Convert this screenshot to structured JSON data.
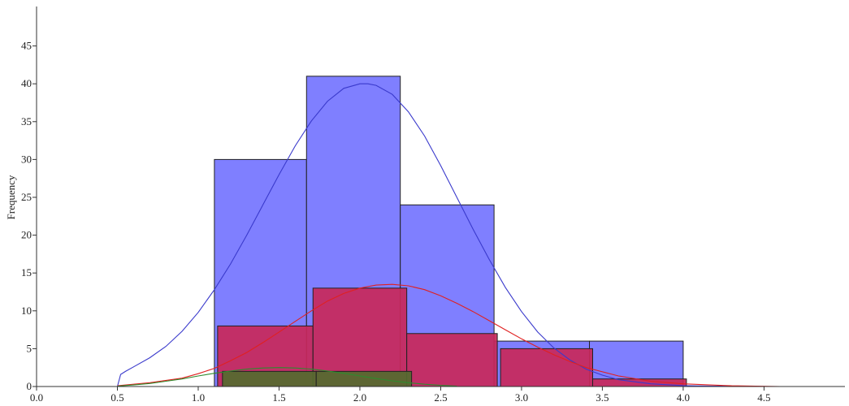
{
  "chart_data": {
    "type": "bar",
    "title": "",
    "xlabel": "",
    "ylabel": "Frequency",
    "xlim": [
      0.0,
      4.9
    ],
    "ylim": [
      0,
      50
    ],
    "x_ticks": [
      0.0,
      0.5,
      1.0,
      1.5,
      2.0,
      2.5,
      3.0,
      3.5,
      4.0,
      4.5
    ],
    "x_tick_labels": [
      "0.0",
      "0.5",
      "1.0",
      "1.5",
      "2.0",
      "2.5",
      "3.0",
      "3.5",
      "4.0",
      "4.5"
    ],
    "y_ticks": [
      0,
      5,
      10,
      15,
      20,
      25,
      30,
      35,
      40,
      45
    ],
    "y_tick_labels": [
      "0",
      "5",
      "10",
      "15",
      "20",
      "25",
      "30",
      "35",
      "40",
      "45"
    ],
    "grid": false,
    "legend": "none",
    "series": [
      {
        "color": "#7b7bff",
        "curve_color": "#3a3acc",
        "bins": [
          {
            "x0": 1.1,
            "x1": 1.67,
            "count": 30
          },
          {
            "x0": 1.67,
            "x1": 2.25,
            "count": 41
          },
          {
            "x0": 2.25,
            "x1": 2.83,
            "count": 24
          },
          {
            "x0": 2.83,
            "x1": 3.42,
            "count": 6
          },
          {
            "x0": 3.42,
            "x1": 4.0,
            "count": 6
          }
        ],
        "curve": {
          "x": [
            0.5,
            0.52,
            0.55,
            0.6,
            0.7,
            0.8,
            0.9,
            1.0,
            1.1,
            1.2,
            1.3,
            1.4,
            1.5,
            1.6,
            1.7,
            1.8,
            1.9,
            2.0,
            2.05,
            2.1,
            2.2,
            2.3,
            2.4,
            2.5,
            2.6,
            2.7,
            2.8,
            2.9,
            3.0,
            3.1,
            3.2,
            3.3,
            3.4,
            3.5,
            3.6,
            3.8,
            4.0,
            4.2,
            4.5,
            4.6
          ],
          "y": [
            0,
            1.6,
            2.0,
            2.6,
            3.8,
            5.3,
            7.3,
            9.8,
            12.8,
            16.2,
            20.0,
            24.0,
            28.0,
            31.8,
            35.1,
            37.7,
            39.4,
            40.0,
            40.0,
            39.8,
            38.6,
            36.3,
            33.1,
            29.2,
            25.0,
            20.8,
            16.8,
            13.1,
            9.9,
            7.2,
            5.1,
            3.5,
            2.3,
            1.5,
            0.9,
            0.35,
            0.12,
            0.05,
            0.0,
            0.0
          ]
        }
      },
      {
        "color": "#c8285a",
        "curve_color": "#e02020",
        "bins": [
          {
            "x0": 1.12,
            "x1": 1.71,
            "count": 8
          },
          {
            "x0": 1.71,
            "x1": 2.29,
            "count": 13
          },
          {
            "x0": 2.29,
            "x1": 2.85,
            "count": 7
          },
          {
            "x0": 2.87,
            "x1": 3.44,
            "count": 5
          },
          {
            "x0": 3.44,
            "x1": 4.02,
            "count": 1
          }
        ],
        "curve": {
          "x": [
            0.5,
            0.7,
            0.9,
            1.0,
            1.1,
            1.2,
            1.3,
            1.4,
            1.5,
            1.6,
            1.7,
            1.8,
            1.9,
            2.0,
            2.1,
            2.2,
            2.3,
            2.4,
            2.5,
            2.6,
            2.7,
            2.8,
            2.9,
            3.0,
            3.1,
            3.2,
            3.3,
            3.4,
            3.6,
            3.8,
            4.0,
            4.3,
            4.6
          ],
          "y": [
            0.1,
            0.5,
            1.1,
            1.7,
            2.4,
            3.4,
            4.5,
            5.8,
            7.2,
            8.6,
            10.0,
            11.3,
            12.3,
            13.0,
            13.4,
            13.5,
            13.3,
            12.8,
            12.0,
            11.0,
            9.9,
            8.7,
            7.5,
            6.3,
            5.2,
            4.2,
            3.3,
            2.5,
            1.4,
            0.7,
            0.35,
            0.1,
            0.0
          ]
        }
      },
      {
        "color": "#556b2f",
        "curve_color": "#2e8b2e",
        "bins": [
          {
            "x0": 1.15,
            "x1": 1.73,
            "count": 2
          },
          {
            "x0": 1.73,
            "x1": 2.32,
            "count": 2
          }
        ],
        "curve": {
          "x": [
            0.5,
            0.6,
            0.7,
            0.8,
            0.9,
            1.0,
            1.1,
            1.2,
            1.3,
            1.4,
            1.5,
            1.6,
            1.7,
            1.8,
            1.9,
            2.0,
            2.1,
            2.2,
            2.3,
            2.4,
            2.5,
            2.6
          ],
          "y": [
            0.05,
            0.2,
            0.4,
            0.7,
            1.0,
            1.4,
            1.75,
            2.05,
            2.3,
            2.45,
            2.5,
            2.45,
            2.3,
            2.05,
            1.75,
            1.4,
            1.05,
            0.75,
            0.5,
            0.3,
            0.15,
            0.05
          ]
        }
      }
    ]
  }
}
